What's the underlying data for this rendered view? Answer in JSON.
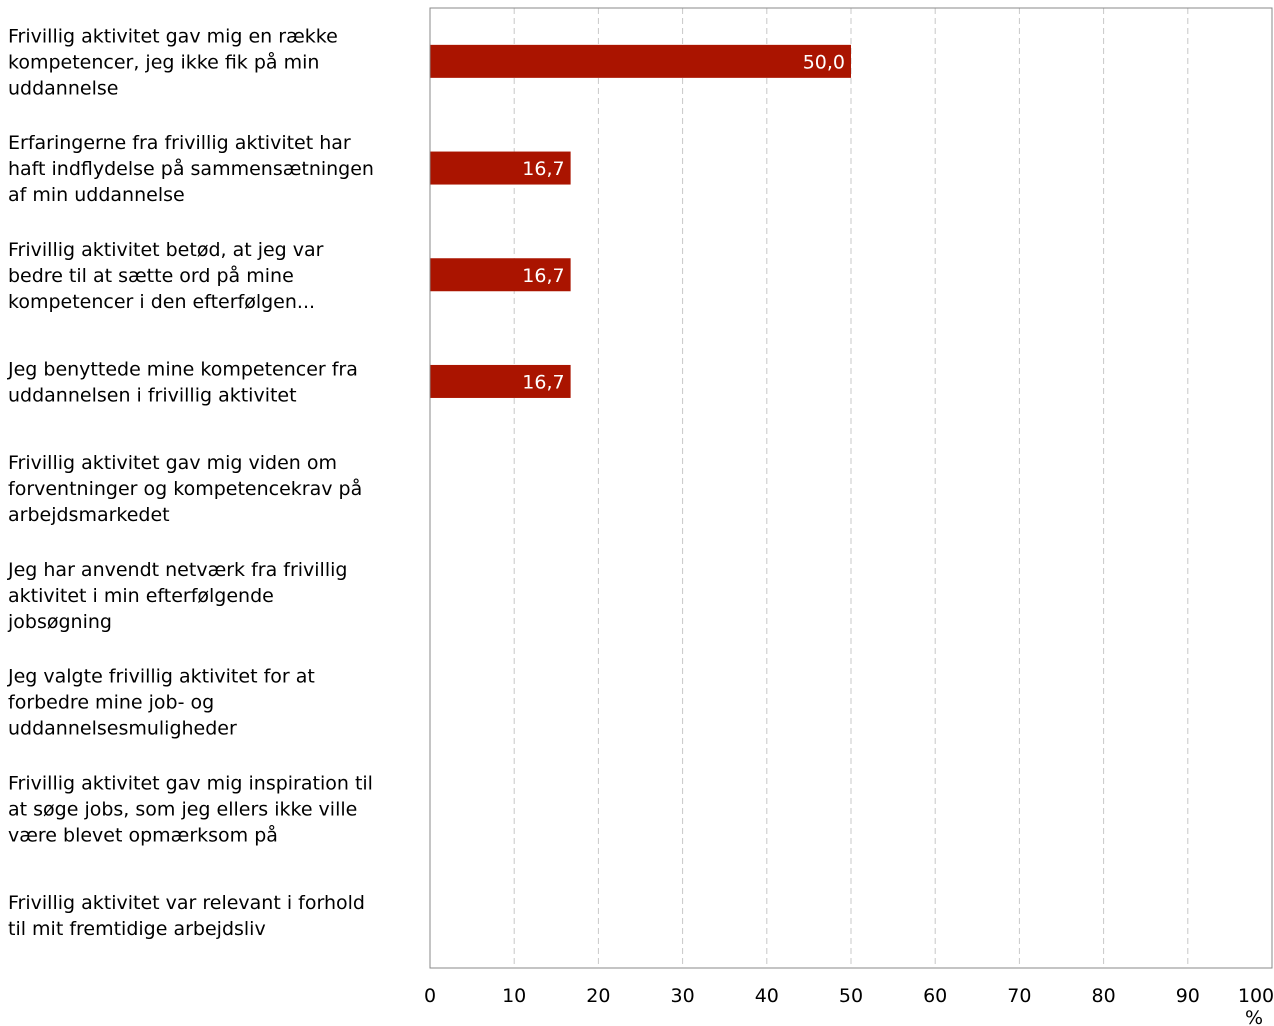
{
  "chart_data": {
    "type": "bar",
    "orientation": "horizontal",
    "categories": [
      "Frivillig aktivitet gav mig en række kompetencer, jeg ikke fik på min uddannelse",
      "Erfaringerne fra frivillig aktivitet har haft indflydelse på sammensætningen af min uddannelse",
      "Frivillig aktivitet betød, at jeg var bedre til at sætte ord på mine kompetencer i den efterfølgen...",
      "Jeg benyttede mine kompetencer fra uddannelsen i frivillig aktivitet",
      "Frivillig aktivitet gav mig viden om forventninger og kompetencekrav på arbejdsmarkedet",
      "Jeg har anvendt netværk fra frivillig aktivitet i min efterfølgende jobsøgning",
      "Jeg valgte frivillig aktivitet for at forbedre mine job- og uddannelsesmuligheder",
      "Frivillig aktivitet gav mig inspiration til at søge jobs, som jeg ellers ikke ville være blevet opmærksom på",
      "Frivillig aktivitet var relevant i forhold til mit fremtidige arbejdsliv"
    ],
    "category_lines": [
      [
        "Frivillig aktivitet gav mig en række",
        "kompetencer, jeg ikke fik på min",
        "uddannelse"
      ],
      [
        "Erfaringerne fra frivillig aktivitet har",
        "haft indflydelse på sammensætningen",
        "af min uddannelse"
      ],
      [
        "Frivillig aktivitet betød, at jeg var",
        "bedre til at sætte ord på mine",
        "kompetencer i den efterfølgen..."
      ],
      [
        "Jeg benyttede mine kompetencer fra",
        "uddannelsen i frivillig aktivitet"
      ],
      [
        "Frivillig aktivitet gav mig viden om",
        "forventninger og kompetencekrav på",
        "arbejdsmarkedet"
      ],
      [
        "Jeg har anvendt netværk fra frivillig",
        "aktivitet i min efterfølgende",
        "jobsøgning"
      ],
      [
        "Jeg valgte frivillig aktivitet for at",
        "forbedre mine job- og",
        "uddannelsesmuligheder"
      ],
      [
        "Frivillig aktivitet gav mig inspiration til",
        "at søge jobs, som jeg ellers ikke ville",
        "være blevet opmærksom på"
      ],
      [
        "Frivillig aktivitet var relevant i forhold",
        "til mit fremtidige arbejdsliv"
      ]
    ],
    "values": [
      50.0,
      16.7,
      16.7,
      16.7,
      null,
      null,
      null,
      null,
      null
    ],
    "value_labels": [
      "50,0",
      "16,7",
      "16,7",
      "16,7",
      "",
      "",
      "",
      "",
      ""
    ],
    "xlim": [
      0,
      100
    ],
    "xticks": [
      0,
      10,
      20,
      30,
      40,
      50,
      60,
      70,
      80,
      90,
      100
    ],
    "xlabel": "%",
    "grid": "vertical dashed",
    "bar_color": "#aa1400"
  }
}
